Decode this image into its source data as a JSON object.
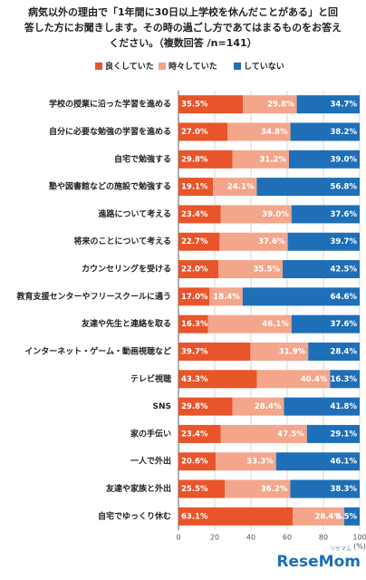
{
  "title_lines": [
    "病気以外の理由で「1年間に30日以上学校を休んだことがある」と回",
    "答した方にお聞きします。その時の過ごし方であてはまるものをお答え",
    "ください。（複数回答 /n=141）"
  ],
  "watermark": {
    "kana": "リセマム",
    "text": "ReseMom"
  },
  "chart_data": {
    "type": "bar",
    "stacked": true,
    "orientation": "horizontal",
    "grid": true,
    "legend": "top",
    "categories": [
      "学校の授業に沿った学習を進める",
      "自分に必要な勉強の学習を進める",
      "自宅で勉強する",
      "塾や図書館などの施設で勉強する",
      "進路について考える",
      "将来のことについて考える",
      "カウンセリングを受ける",
      "教育支援センターやフリースクールに通う",
      "友達や先生と連絡を取る",
      "インターネット・ゲーム・動画視聴など",
      "テレビ視聴",
      "SNS",
      "家の手伝い",
      "一人で外出",
      "友達や家族と外出",
      "自宅でゆっくり休む"
    ],
    "series": [
      {
        "name": "良くしていた",
        "color": "#e8552b",
        "values": [
          35.5,
          27.0,
          29.8,
          19.1,
          23.4,
          22.7,
          22.0,
          17.0,
          16.3,
          39.7,
          43.3,
          29.8,
          23.4,
          20.6,
          25.5,
          63.1
        ],
        "value_labels": [
          "35.5%",
          "27.0%",
          "29.8%",
          "19.1%",
          "23.4%",
          "22.7%",
          "22.0%",
          "17.0%",
          "16.3%",
          "39.7%",
          "43.3%",
          "29.8%",
          "23.4%",
          "20.6%",
          "25.5%",
          "63.1%"
        ]
      },
      {
        "name": "時々していた",
        "color": "#f3a68c",
        "values": [
          29.8,
          34.8,
          31.2,
          24.1,
          39.0,
          37.6,
          35.5,
          18.4,
          46.1,
          31.9,
          40.4,
          28.4,
          47.5,
          33.3,
          36.2,
          28.4
        ],
        "value_labels": [
          "29.8%",
          "34.8%",
          "31.2%",
          "24.1%",
          "39.0%",
          "37.6%",
          "35.5%",
          "18.4%",
          "46.1%",
          "31.9%",
          "40.4%",
          "28.4%",
          "47.5%",
          "33.3%",
          "36.2%",
          "28.4%"
        ]
      },
      {
        "name": "していない",
        "color": "#1e6fb7",
        "values": [
          34.7,
          38.2,
          39.0,
          56.8,
          37.6,
          39.7,
          42.5,
          64.6,
          37.6,
          28.4,
          16.3,
          41.8,
          29.1,
          46.1,
          38.3,
          8.5
        ],
        "value_labels": [
          "34.7%",
          "38.2%",
          "39.0%",
          "56.8%",
          "37.6%",
          "39.7%",
          "42.5%",
          "64.6%",
          "37.6%",
          "28.4%",
          "16.3%",
          "41.8%",
          "29.1%",
          "46.1%",
          "38.3%",
          "8.5%"
        ]
      }
    ],
    "xlim": [
      0,
      100
    ],
    "xticks": [
      0,
      20,
      40,
      60,
      80,
      100
    ],
    "xlabel": "(%)"
  }
}
